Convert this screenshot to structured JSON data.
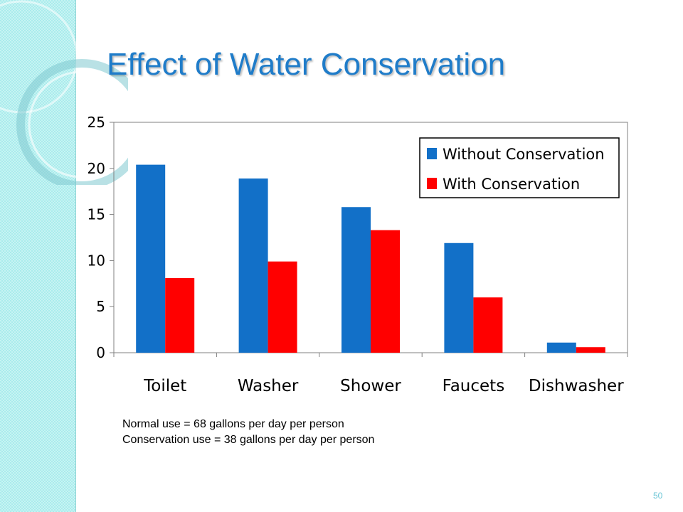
{
  "slide": {
    "title": "Effect of Water Conservation",
    "notes": [
      "Normal use = 68 gallons per day per person",
      "Conservation use = 38 gallons per day per person"
    ],
    "page_number": "50"
  },
  "colors": {
    "title": "#1f7cc9",
    "band": "#a9ecec",
    "series_without": "#1270c8",
    "series_with": "#ff0000"
  },
  "chart_data": {
    "type": "bar",
    "categories": [
      "Toilet",
      "Washer",
      "Shower",
      "Faucets",
      "Dishwasher"
    ],
    "series": [
      {
        "name": "Without Conservation",
        "values": [
          20.4,
          18.9,
          15.8,
          11.9,
          1.1
        ]
      },
      {
        "name": "With Conservation",
        "values": [
          8.1,
          9.9,
          13.3,
          6.0,
          0.6
        ]
      }
    ],
    "yticks": [
      "0",
      "5",
      "10",
      "15",
      "20",
      "25"
    ],
    "ylim": [
      0,
      25
    ],
    "grid": false,
    "legend": "top-right"
  }
}
